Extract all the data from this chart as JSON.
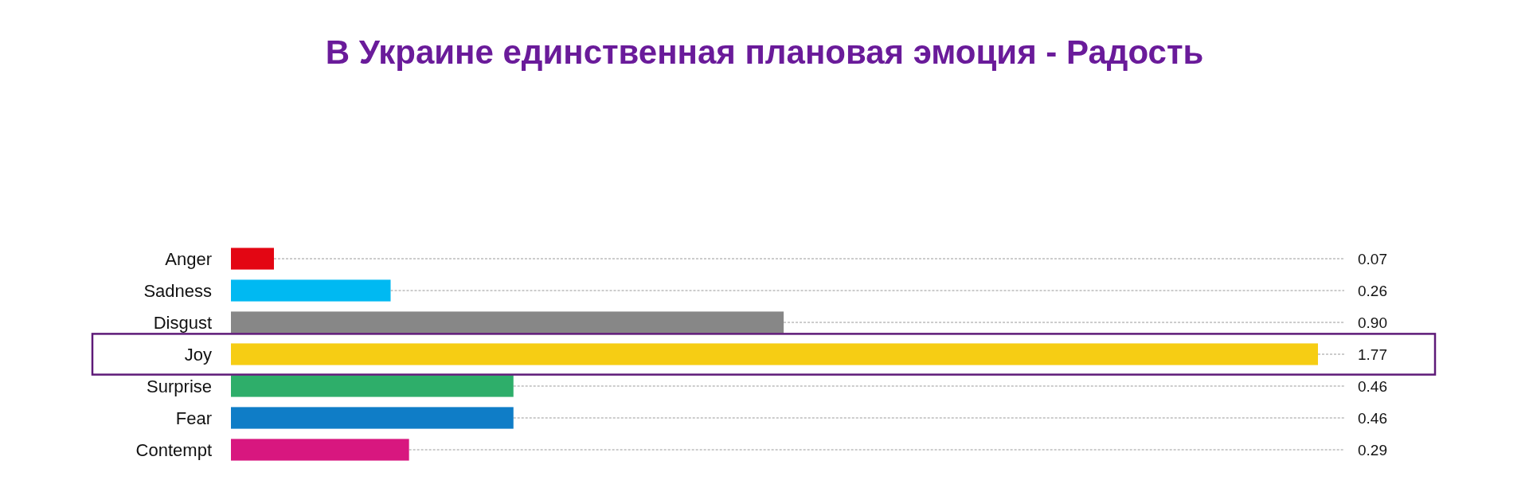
{
  "chart_data": {
    "type": "bar",
    "orientation": "horizontal",
    "title": "В Украине единственная плановая эмоция - Радость",
    "categories": [
      "Anger",
      "Sadness",
      "Disgust",
      "Joy",
      "Surprise",
      "Fear",
      "Contempt"
    ],
    "values": [
      0.07,
      0.26,
      0.9,
      1.77,
      0.46,
      0.46,
      0.29
    ],
    "colors": [
      "#e30613",
      "#00b9f2",
      "#878787",
      "#f6cd14",
      "#2eae6a",
      "#0f7dc7",
      "#d8177f"
    ],
    "value_labels": [
      "0.07",
      "0.26",
      "0.90",
      "1.77",
      "0.46",
      "0.46",
      "0.29"
    ],
    "grid": "y"
  }
}
